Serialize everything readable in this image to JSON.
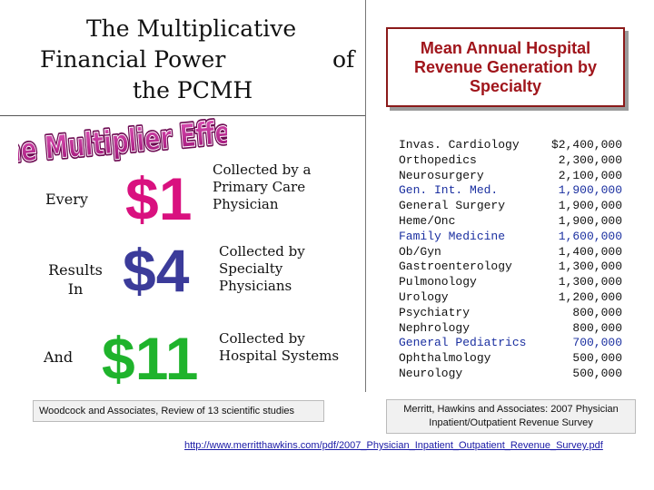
{
  "left": {
    "title_lines": [
      "The Multiplicative",
      "Financial Power",
      "of",
      "the PCMH"
    ],
    "banner": "The Multiplier Effect",
    "rows": [
      {
        "label_lines": [
          "Every"
        ],
        "amount": "$1",
        "desc": "Collected by a Primary Care Physician"
      },
      {
        "label_lines": [
          "Results",
          "In"
        ],
        "amount": "$4",
        "desc": "Collected by Specialty Physicians"
      },
      {
        "label_lines": [
          "And"
        ],
        "amount": "$11",
        "desc": "Collected by Hospital Systems"
      }
    ],
    "citation": "Woodcock and Associates, Review of 13 scientific studies"
  },
  "right": {
    "title": "Mean Annual Hospital Revenue Generation by Specialty",
    "table": [
      {
        "specialty": "Invas. Cardiology",
        "revenue": "$2,400,000",
        "color": "#111111"
      },
      {
        "specialty": "Orthopedics",
        "revenue": "2,300,000",
        "color": "#111111"
      },
      {
        "specialty": "Neurosurgery",
        "revenue": "2,100,000",
        "color": "#111111"
      },
      {
        "specialty": "Gen. Int. Med.",
        "revenue": "1,900,000",
        "color": "#1a2fa0"
      },
      {
        "specialty": "General Surgery",
        "revenue": "1,900,000",
        "color": "#111111"
      },
      {
        "specialty": "Heme/Onc",
        "revenue": "1,900,000",
        "color": "#111111"
      },
      {
        "specialty": "Family Medicine",
        "revenue": "1,600,000",
        "color": "#1a2fa0"
      },
      {
        "specialty": "Ob/Gyn",
        "revenue": "1,400,000",
        "color": "#111111"
      },
      {
        "specialty": "Gastroenterology",
        "revenue": "1,300,000",
        "color": "#111111"
      },
      {
        "specialty": "Pulmonology",
        "revenue": "1,300,000",
        "color": "#111111"
      },
      {
        "specialty": "Urology",
        "revenue": "1,200,000",
        "color": "#111111"
      },
      {
        "specialty": "Psychiatry",
        "revenue": "800,000",
        "color": "#111111"
      },
      {
        "specialty": "Nephrology",
        "revenue": "800,000",
        "color": "#111111"
      },
      {
        "specialty": "General Pediatrics",
        "revenue": "700,000",
        "color": "#1a2fa0"
      },
      {
        "specialty": "Ophthalmology",
        "revenue": "500,000",
        "color": "#111111"
      },
      {
        "specialty": "Neurology",
        "revenue": "500,000",
        "color": "#111111"
      }
    ],
    "citation_lines": [
      "Merritt, Hawkins and Associates:  2007 Physician",
      "Inpatient/Outpatient Revenue Survey"
    ]
  },
  "url": "http://www.merritthawkins.com/pdf/2007_Physician_Inpatient_Outpatient_Revenue_Survey.pdf",
  "colors": {
    "dollar1": "#d9117f",
    "dollar4": "#3b3b9a",
    "dollar11": "#1fb32c",
    "right_title": "#a0151b",
    "banner": "#c0148a"
  }
}
